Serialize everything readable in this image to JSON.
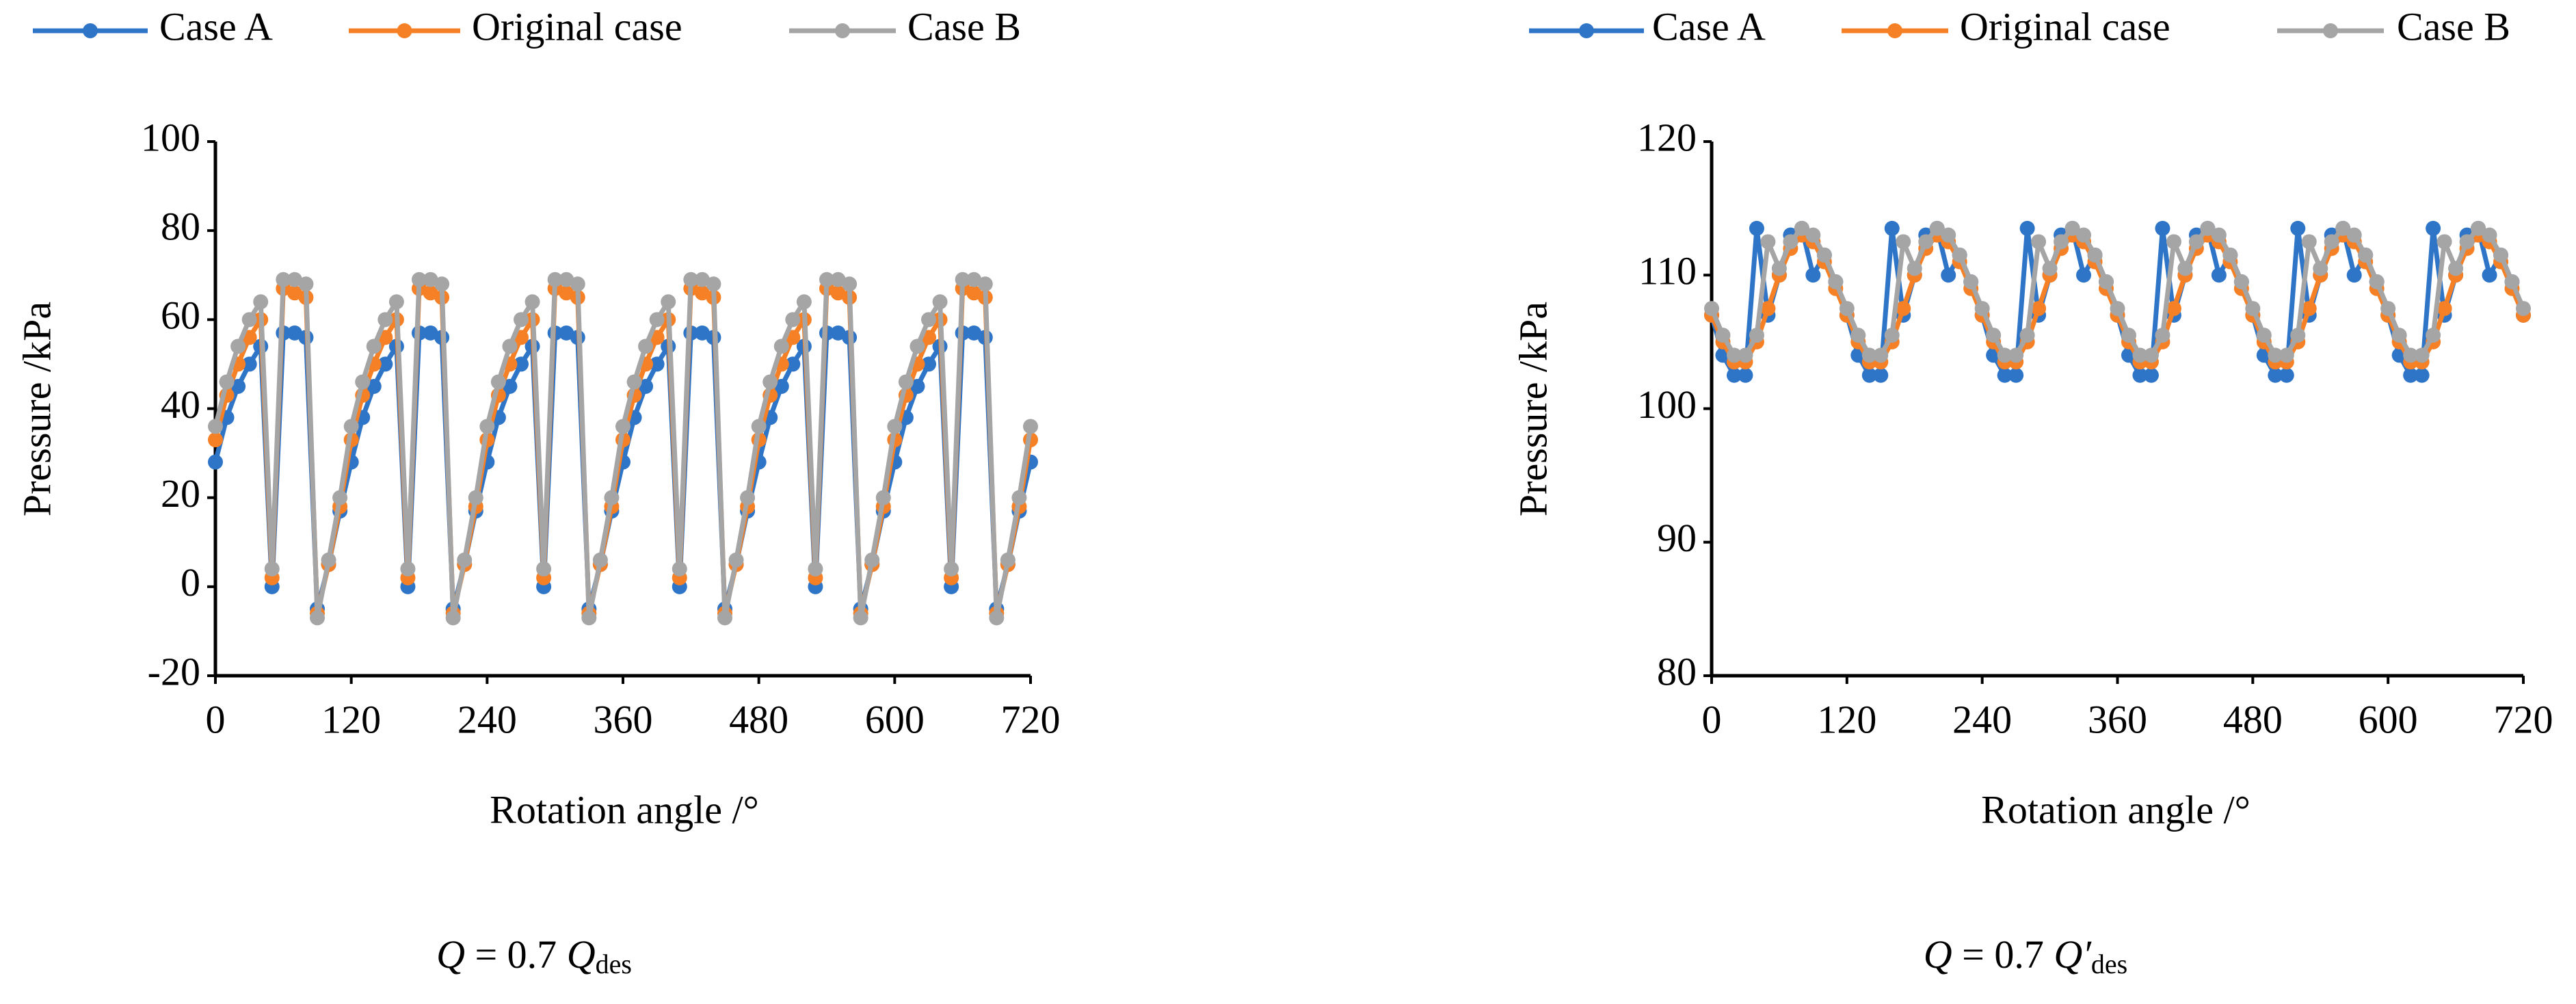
{
  "chart_data": [
    {
      "type": "line",
      "x_label": "Rotation angle /°",
      "y_label": "Pressure /kPa",
      "caption": {
        "symbol": "Q",
        "relation": " = 0.7 ",
        "variable": "Q",
        "subscript": "des"
      },
      "legend": "top",
      "x": [
        0,
        10,
        20,
        30,
        40,
        50,
        60,
        70,
        80,
        90,
        100,
        110,
        120,
        130,
        140,
        150,
        160,
        170,
        180,
        190,
        200,
        210,
        220,
        230,
        240,
        250,
        260,
        270,
        280,
        290,
        300,
        310,
        320,
        330,
        340,
        350,
        360,
        370,
        380,
        390,
        400,
        410,
        420,
        430,
        440,
        450,
        460,
        470,
        480,
        490,
        500,
        510,
        520,
        530,
        540,
        550,
        560,
        570,
        580,
        590,
        600,
        610,
        620,
        630,
        640,
        650,
        660,
        670,
        680,
        690,
        700,
        710,
        720
      ],
      "xlim": [
        0,
        720
      ],
      "xticks": [
        0,
        120,
        240,
        360,
        480,
        600,
        720
      ],
      "ylim": [
        -20,
        100
      ],
      "yticks": [
        -20,
        0,
        20,
        40,
        60,
        80,
        100
      ],
      "series": [
        {
          "name": "Case A",
          "color": "#2e75c8",
          "values": [
            28,
            38,
            45,
            50,
            54,
            0,
            57,
            57,
            56,
            -5,
            5,
            17,
            28,
            38,
            45,
            50,
            54,
            0,
            57,
            57,
            56,
            -5,
            5,
            17,
            28,
            38,
            45,
            50,
            54,
            0,
            57,
            57,
            56,
            -5,
            5,
            17,
            28,
            38,
            45,
            50,
            54,
            0,
            57,
            57,
            56,
            -5,
            5,
            17,
            28,
            38,
            45,
            50,
            54,
            0,
            57,
            57,
            56,
            -5,
            5,
            17,
            28,
            38,
            45,
            50,
            54,
            0,
            57,
            57,
            56,
            -5,
            5,
            17,
            28
          ]
        },
        {
          "name": "Original case",
          "color": "#f58025",
          "values": [
            33,
            43,
            50,
            56,
            60,
            2,
            67,
            66,
            65,
            -6,
            5,
            18,
            33,
            43,
            50,
            56,
            60,
            2,
            67,
            66,
            65,
            -6,
            5,
            18,
            33,
            43,
            50,
            56,
            60,
            2,
            67,
            66,
            65,
            -6,
            5,
            18,
            33,
            43,
            50,
            56,
            60,
            2,
            67,
            66,
            65,
            -6,
            5,
            18,
            33,
            43,
            50,
            56,
            60,
            2,
            67,
            66,
            65,
            -6,
            5,
            18,
            33,
            43,
            50,
            56,
            60,
            2,
            67,
            66,
            65,
            -6,
            5,
            18,
            33
          ]
        },
        {
          "name": "Case B",
          "color": "#a5a5a5",
          "values": [
            36,
            46,
            54,
            60,
            64,
            4,
            69,
            69,
            68,
            -7,
            6,
            20,
            36,
            46,
            54,
            60,
            64,
            4,
            69,
            69,
            68,
            -7,
            6,
            20,
            36,
            46,
            54,
            60,
            64,
            4,
            69,
            69,
            68,
            -7,
            6,
            20,
            36,
            46,
            54,
            60,
            64,
            4,
            69,
            69,
            68,
            -7,
            6,
            20,
            36,
            46,
            54,
            60,
            64,
            4,
            69,
            69,
            68,
            -7,
            6,
            20,
            36,
            46,
            54,
            60,
            64,
            4,
            69,
            69,
            68,
            -7,
            6,
            20,
            36
          ]
        }
      ]
    },
    {
      "type": "line",
      "x_label": "Rotation angle /°",
      "y_label": "Pressure /kPa",
      "caption": {
        "symbol": "Q",
        "relation": " = 0.7 ",
        "variable": "Q′",
        "subscript": "des"
      },
      "legend": "top",
      "x": [
        0,
        10,
        20,
        30,
        40,
        50,
        60,
        70,
        80,
        90,
        100,
        110,
        120,
        130,
        140,
        150,
        160,
        170,
        180,
        190,
        200,
        210,
        220,
        230,
        240,
        250,
        260,
        270,
        280,
        290,
        300,
        310,
        320,
        330,
        340,
        350,
        360,
        370,
        380,
        390,
        400,
        410,
        420,
        430,
        440,
        450,
        460,
        470,
        480,
        490,
        500,
        510,
        520,
        530,
        540,
        550,
        560,
        570,
        580,
        590,
        600,
        610,
        620,
        630,
        640,
        650,
        660,
        670,
        680,
        690,
        700,
        710,
        720
      ],
      "xlim": [
        0,
        720
      ],
      "xticks": [
        0,
        120,
        240,
        360,
        480,
        600,
        720
      ],
      "ylim": [
        80,
        120
      ],
      "yticks": [
        80,
        90,
        100,
        110,
        120
      ],
      "series": [
        {
          "name": "Case A",
          "color": "#2e75c8",
          "values": [
            107,
            104,
            102.5,
            102.5,
            113.5,
            107,
            110,
            113,
            113.5,
            110,
            111.5,
            109.5,
            107,
            104,
            102.5,
            102.5,
            113.5,
            107,
            110,
            113,
            113.5,
            110,
            111.5,
            109.5,
            107,
            104,
            102.5,
            102.5,
            113.5,
            107,
            110,
            113,
            113.5,
            110,
            111.5,
            109.5,
            107,
            104,
            102.5,
            102.5,
            113.5,
            107,
            110,
            113,
            113.5,
            110,
            111.5,
            109.5,
            107,
            104,
            102.5,
            102.5,
            113.5,
            107,
            110,
            113,
            113.5,
            110,
            111.5,
            109.5,
            107,
            104,
            102.5,
            102.5,
            113.5,
            107,
            110,
            113,
            113.5,
            110,
            111.5,
            109.5,
            107
          ]
        },
        {
          "name": "Original case",
          "color": "#f58025",
          "values": [
            107,
            105,
            103.5,
            103.5,
            105,
            107.5,
            110,
            112,
            113,
            112.5,
            111,
            109,
            107,
            105,
            103.5,
            103.5,
            105,
            107.5,
            110,
            112,
            113,
            112.5,
            111,
            109,
            107,
            105,
            103.5,
            103.5,
            105,
            107.5,
            110,
            112,
            113,
            112.5,
            111,
            109,
            107,
            105,
            103.5,
            103.5,
            105,
            107.5,
            110,
            112,
            113,
            112.5,
            111,
            109,
            107,
            105,
            103.5,
            103.5,
            105,
            107.5,
            110,
            112,
            113,
            112.5,
            111,
            109,
            107,
            105,
            103.5,
            103.5,
            105,
            107.5,
            110,
            112,
            113,
            112.5,
            111,
            109,
            107
          ]
        },
        {
          "name": "Case B",
          "color": "#a5a5a5",
          "values": [
            107.5,
            105.5,
            104,
            104,
            105.5,
            112.5,
            110.5,
            112.5,
            113.5,
            113,
            111.5,
            109.5,
            107.5,
            105.5,
            104,
            104,
            105.5,
            112.5,
            110.5,
            112.5,
            113.5,
            113,
            111.5,
            109.5,
            107.5,
            105.5,
            104,
            104,
            105.5,
            112.5,
            110.5,
            112.5,
            113.5,
            113,
            111.5,
            109.5,
            107.5,
            105.5,
            104,
            104,
            105.5,
            112.5,
            110.5,
            112.5,
            113.5,
            113,
            111.5,
            109.5,
            107.5,
            105.5,
            104,
            104,
            105.5,
            112.5,
            110.5,
            112.5,
            113.5,
            113,
            111.5,
            109.5,
            107.5,
            105.5,
            104,
            104,
            105.5,
            112.5,
            110.5,
            112.5,
            113.5,
            113,
            111.5,
            109.5,
            107.5
          ]
        }
      ]
    }
  ]
}
